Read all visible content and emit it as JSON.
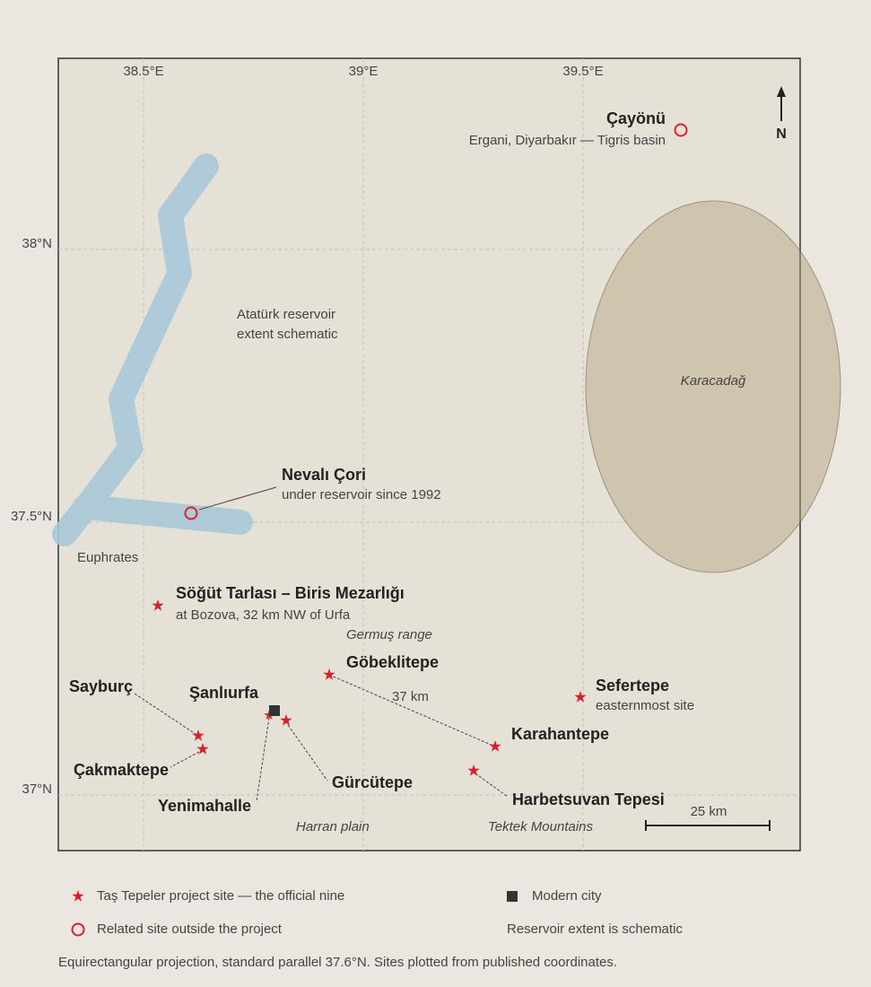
{
  "map": {
    "x_ticks": [
      {
        "value": 38.5,
        "label": "38.5°E"
      },
      {
        "value": 39,
        "label": "39°E"
      },
      {
        "value": 39.5,
        "label": "39.5°E"
      }
    ],
    "y_ticks": [
      {
        "value": 38,
        "label": "38°N"
      },
      {
        "value": 37.5,
        "label": "37.5°N"
      },
      {
        "value": 37,
        "label": "37°N"
      }
    ],
    "north": "N",
    "regions": [
      "Atatürk reservoir",
      "extent schematic",
      "Karacadağ",
      "Euphrates",
      "Germuş range",
      "Harran plain",
      "Tektek Mountains"
    ],
    "sites": [
      {
        "name": "Çayönü",
        "note": "Ergani, Diyarbakır — Tigris basin"
      },
      {
        "name": "Nevalı Çori",
        "note": "under reservoir since 1992"
      },
      {
        "name": "Söğüt Tarlası – Biris Mezarlığı",
        "note": "at Bozova, 32 km NW of Urfa"
      },
      {
        "name": "Göbeklitepe"
      },
      {
        "name": "Sefertepe",
        "note": "easternmost site"
      },
      {
        "name": "Karahantepe"
      },
      {
        "name": "Harbetsuvan Tepesi"
      },
      {
        "name": "Gürcütepe"
      },
      {
        "name": "Yenimahalle"
      },
      {
        "name": "Şanlıurfa"
      },
      {
        "name": "Sayburç"
      },
      {
        "name": "Çakmaktepe"
      }
    ],
    "distance_label": "37 km",
    "scale_label": "25 km"
  },
  "legend": [
    "Taş Tepeler project site — the official nine",
    "Modern city",
    "Related site outside the project",
    "Reservoir extent is schematic"
  ],
  "footnote": "Equirectangular projection, standard parallel 37.6°N. Sites plotted from published coordinates."
}
